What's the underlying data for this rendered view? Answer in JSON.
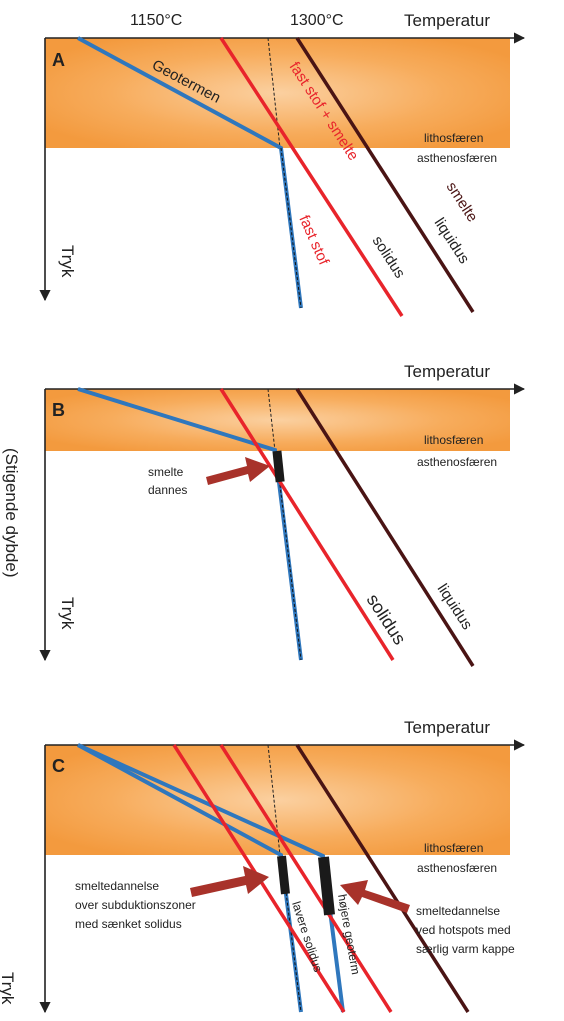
{
  "temperature_marks": {
    "t1150": "1150°C",
    "t1300": "1300°C"
  },
  "axis": {
    "temperature": "Temperatur",
    "pressure": "Tryk",
    "depth_note": "(Stigende dybde)"
  },
  "panels": {
    "a": {
      "letter": "A",
      "geotherm": "Geotermen",
      "fast_stof_smelte": "fast stof + smelte",
      "smelte": "smelte",
      "fast_stof": "fast stof",
      "solidus": "solidus",
      "liquidus": "liquidus",
      "lithosphere": "lithosfæren",
      "asthenosphere": "asthenosfæren"
    },
    "b": {
      "letter": "B",
      "melt_line1": "smelte",
      "melt_line2": "dannes",
      "solidus": "solidus",
      "liquidus": "liquidus",
      "lithosphere": "lithosfæren",
      "asthenosphere": "asthenosfæren"
    },
    "c": {
      "letter": "C",
      "subduction_line1": "smeltedannelse",
      "subduction_line2": "over subduktionszoner",
      "subduction_line3": "med sænket solidus",
      "hotspot_line1": "smeltedannelse",
      "hotspot_line2": "ved hotspots med",
      "hotspot_line3": "særlig varm kappe",
      "lower_solidus": "lavere solidus",
      "higher_geotherm": "højere geoterm",
      "lithosphere": "lithosfæren",
      "asthenosphere": "asthenosfæren"
    }
  },
  "colors": {
    "band": "#f7a24a",
    "geotherm": "#2f77bd",
    "solidus": "#e8242b",
    "liquidus": "#4a1414",
    "melt_arrow": "#a8322a",
    "melt_zone": "#1a1a1a"
  }
}
